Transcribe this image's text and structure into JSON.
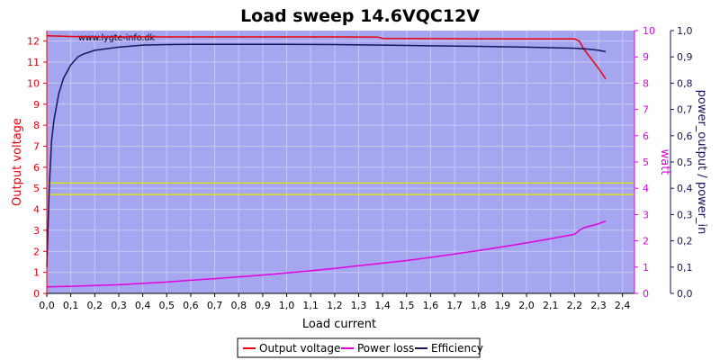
{
  "colors": {
    "plot_bg": "#a6a6f0",
    "grid": "#c8c8f8",
    "left_axis": "#e8000b",
    "right1_axis": "#e000e0",
    "right2_axis": "#151560",
    "threshold": "#e6e600"
  },
  "chart_data": {
    "type": "line",
    "title": "Load sweep 14.6VQC12V",
    "watermark": "www.lygte-info.dk",
    "xlabel": "Load current",
    "ylabel_left": "Output voltage",
    "ylabel_right1": "watt",
    "ylabel_right2": "power_output / power_in",
    "xlim": [
      0,
      2.45
    ],
    "ylim_left": [
      0,
      12.5
    ],
    "ylim_right1": [
      0,
      10
    ],
    "ylim_right2": [
      0,
      1.0
    ],
    "x_ticks": [
      "0,0",
      "0,1",
      "0,2",
      "0,3",
      "0,4",
      "0,5",
      "0,6",
      "0,7",
      "0,8",
      "0,9",
      "1,0",
      "1,1",
      "1,2",
      "1,3",
      "1,4",
      "1,5",
      "1,6",
      "1,7",
      "1,8",
      "1,9",
      "2,0",
      "2,1",
      "2,2",
      "2,3",
      "2,4"
    ],
    "left_ticks": [
      "0",
      "1",
      "2",
      "3",
      "4",
      "5",
      "6",
      "7",
      "8",
      "9",
      "10",
      "11",
      "12"
    ],
    "right1_ticks": [
      "0",
      "1",
      "2",
      "3",
      "4",
      "5",
      "6",
      "7",
      "8",
      "9",
      "10"
    ],
    "right2_ticks": [
      "0,0",
      "0,1",
      "0,2",
      "0,3",
      "0,4",
      "0,5",
      "0,6",
      "0,7",
      "0,8",
      "0,9",
      "1,0"
    ],
    "threshold_lines_left_axis": [
      4.7,
      5.25
    ],
    "legend": [
      {
        "name": "Output voltage",
        "color": "#e8000b"
      },
      {
        "name": "Power loss",
        "color": "#e000e0"
      },
      {
        "name": "Efficiency",
        "color": "#151560"
      }
    ],
    "series": [
      {
        "name": "Output voltage",
        "axis": "left",
        "x": [
          0.0,
          0.05,
          0.1,
          0.2,
          0.4,
          0.6,
          0.8,
          1.0,
          1.2,
          1.38,
          1.4,
          1.6,
          1.8,
          2.0,
          2.2,
          2.22,
          2.24,
          2.26,
          2.28,
          2.3,
          2.33
        ],
        "values": [
          12.25,
          12.24,
          12.22,
          12.2,
          12.2,
          12.2,
          12.2,
          12.2,
          12.2,
          12.19,
          12.13,
          12.12,
          12.11,
          12.1,
          12.1,
          12.0,
          11.6,
          11.3,
          11.0,
          10.7,
          10.2
        ]
      },
      {
        "name": "Power loss",
        "axis": "right1",
        "x": [
          0.0,
          0.1,
          0.2,
          0.3,
          0.4,
          0.5,
          0.6,
          0.7,
          0.8,
          0.9,
          1.0,
          1.1,
          1.2,
          1.3,
          1.4,
          1.5,
          1.6,
          1.7,
          1.8,
          1.9,
          2.0,
          2.1,
          2.2,
          2.22,
          2.24,
          2.26,
          2.28,
          2.3,
          2.33
        ],
        "values": [
          0.25,
          0.27,
          0.3,
          0.33,
          0.38,
          0.43,
          0.5,
          0.56,
          0.63,
          0.7,
          0.78,
          0.86,
          0.95,
          1.05,
          1.15,
          1.25,
          1.37,
          1.5,
          1.63,
          1.77,
          1.92,
          2.08,
          2.25,
          2.4,
          2.5,
          2.55,
          2.6,
          2.65,
          2.75
        ]
      },
      {
        "name": "Efficiency",
        "axis": "right2",
        "x": [
          0.0,
          0.01,
          0.02,
          0.03,
          0.05,
          0.07,
          0.1,
          0.13,
          0.15,
          0.2,
          0.3,
          0.4,
          0.5,
          0.6,
          0.8,
          1.0,
          1.2,
          1.4,
          1.6,
          1.8,
          2.0,
          2.1,
          2.2,
          2.25,
          2.3,
          2.33
        ],
        "values": [
          0.1,
          0.4,
          0.58,
          0.66,
          0.76,
          0.82,
          0.87,
          0.9,
          0.91,
          0.925,
          0.937,
          0.945,
          0.947,
          0.948,
          0.948,
          0.948,
          0.947,
          0.945,
          0.942,
          0.94,
          0.937,
          0.935,
          0.933,
          0.93,
          0.925,
          0.92
        ]
      }
    ]
  }
}
